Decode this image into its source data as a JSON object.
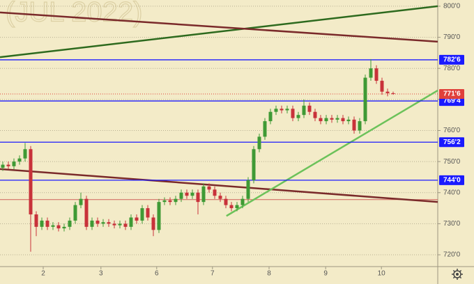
{
  "chart_data": {
    "type": "candlestick",
    "watermark": "(JUL 2022)",
    "open": [
      748,
      749,
      748.5,
      750,
      751,
      754,
      733,
      729,
      731,
      729,
      729.5,
      728.5,
      729,
      731,
      736,
      738,
      729,
      731,
      730,
      730.5,
      730,
      729.5,
      730,
      729,
      732,
      731,
      735,
      732,
      728,
      737,
      737.5,
      737,
      738,
      740,
      739,
      740,
      737,
      742,
      741,
      739,
      738,
      736,
      735,
      736,
      738,
      744,
      754,
      758,
      763,
      766,
      767,
      766.5,
      767,
      764,
      765,
      768,
      766,
      764,
      763,
      764,
      763.5,
      764,
      763,
      763.5,
      760,
      763,
      777,
      780,
      776,
      772.5,
      772
    ],
    "high": [
      750,
      750,
      751,
      752,
      756,
      755,
      734,
      732,
      732,
      730.5,
      730.5,
      730,
      732,
      737,
      740,
      739,
      732,
      732,
      731.5,
      731.5,
      731,
      731,
      731,
      733,
      733,
      736,
      736,
      733,
      738,
      738.5,
      738.5,
      739,
      741,
      741,
      741,
      741,
      743,
      743,
      742,
      740,
      739,
      737,
      737,
      739,
      745,
      755,
      759,
      764,
      767,
      768,
      768,
      768,
      768,
      766,
      770,
      769,
      767,
      765,
      765,
      765,
      765,
      765,
      764.5,
      764.5,
      764,
      778,
      783,
      781,
      777,
      773.5,
      772.5
    ],
    "low": [
      747,
      747.5,
      747.5,
      749,
      750,
      721,
      726,
      728,
      728,
      728,
      727.5,
      727.5,
      728,
      730,
      735,
      728,
      728,
      729,
      729,
      729,
      728.5,
      728.5,
      728,
      728,
      730,
      730,
      731,
      726,
      727,
      736,
      736,
      736,
      737,
      738,
      738,
      733,
      736,
      740,
      738,
      737,
      735,
      734,
      734,
      735,
      737,
      743,
      753,
      757,
      762,
      765,
      765.5,
      765.5,
      763,
      763,
      764,
      765,
      763,
      762,
      762,
      762.5,
      762.5,
      762,
      762,
      759,
      759,
      762,
      776,
      775,
      771.5,
      771,
      771.5
    ],
    "close": [
      749,
      748.5,
      750,
      751,
      754,
      733,
      729,
      731,
      729,
      729.5,
      728.5,
      729,
      731,
      736,
      738,
      729,
      731,
      730,
      730.5,
      730,
      729.5,
      730,
      729,
      732,
      731,
      735,
      732,
      728,
      737,
      737.5,
      737,
      738,
      740,
      739,
      740,
      737,
      742,
      741,
      739,
      738,
      736,
      735,
      736,
      738,
      744,
      754,
      758,
      763,
      766,
      767,
      766.5,
      767,
      764,
      765,
      768,
      766,
      764,
      763,
      764,
      763.5,
      764,
      763,
      763.5,
      760,
      763,
      777,
      780,
      776,
      772.5,
      772,
      771.75
    ],
    "up_color": "#3f9a35",
    "down_color": "#c8323a",
    "xlim": [
      -0.5,
      78
    ],
    "xticks": [
      {
        "value": 7.25,
        "label": "2"
      },
      {
        "value": 17.6,
        "label": "3"
      },
      {
        "value": 27.6,
        "label": "6"
      },
      {
        "value": 37.6,
        "label": "7"
      },
      {
        "value": 47.75,
        "label": "8"
      },
      {
        "value": 57.9,
        "label": "9"
      },
      {
        "value": 67.9,
        "label": "10"
      }
    ],
    "ylim": [
      716.2,
      802
    ],
    "yticks": [
      {
        "value": 720,
        "label": "720'0"
      },
      {
        "value": 730,
        "label": "730'0"
      },
      {
        "value": 740,
        "label": "740'0"
      },
      {
        "value": 750,
        "label": "750'0"
      },
      {
        "value": 760,
        "label": "760'0"
      },
      {
        "value": 770,
        "label": "770'0"
      },
      {
        "value": 780,
        "label": "780'0"
      },
      {
        "value": 790,
        "label": "790'0"
      },
      {
        "value": 800,
        "label": "800'0"
      }
    ],
    "grid": true,
    "levels": [
      {
        "value": 782.75,
        "label": "782'6"
      },
      {
        "value": 769.5,
        "label": "769'4"
      },
      {
        "value": 756.25,
        "label": "756'2"
      },
      {
        "value": 744,
        "label": "744'0"
      }
    ],
    "level_color": "#1a1aff",
    "last_price": {
      "value": 771.75,
      "label": "771'6"
    },
    "last_color": "#e0403a",
    "support_line": 737.75,
    "trendlines": [
      {
        "color": "#2d6a1e",
        "points": [
          [
            -0.5,
            783.6
          ],
          [
            78,
            800
          ]
        ]
      },
      {
        "color": "#7a2a2a",
        "points": [
          [
            -0.5,
            798
          ],
          [
            78,
            788.6
          ]
        ]
      },
      {
        "color": "#7a2a2a",
        "points": [
          [
            -0.5,
            747.6
          ],
          [
            78,
            737
          ]
        ]
      },
      {
        "color": "#6cc25a",
        "points": [
          [
            40.1,
            732.5
          ],
          [
            78,
            772.9
          ]
        ]
      }
    ]
  }
}
